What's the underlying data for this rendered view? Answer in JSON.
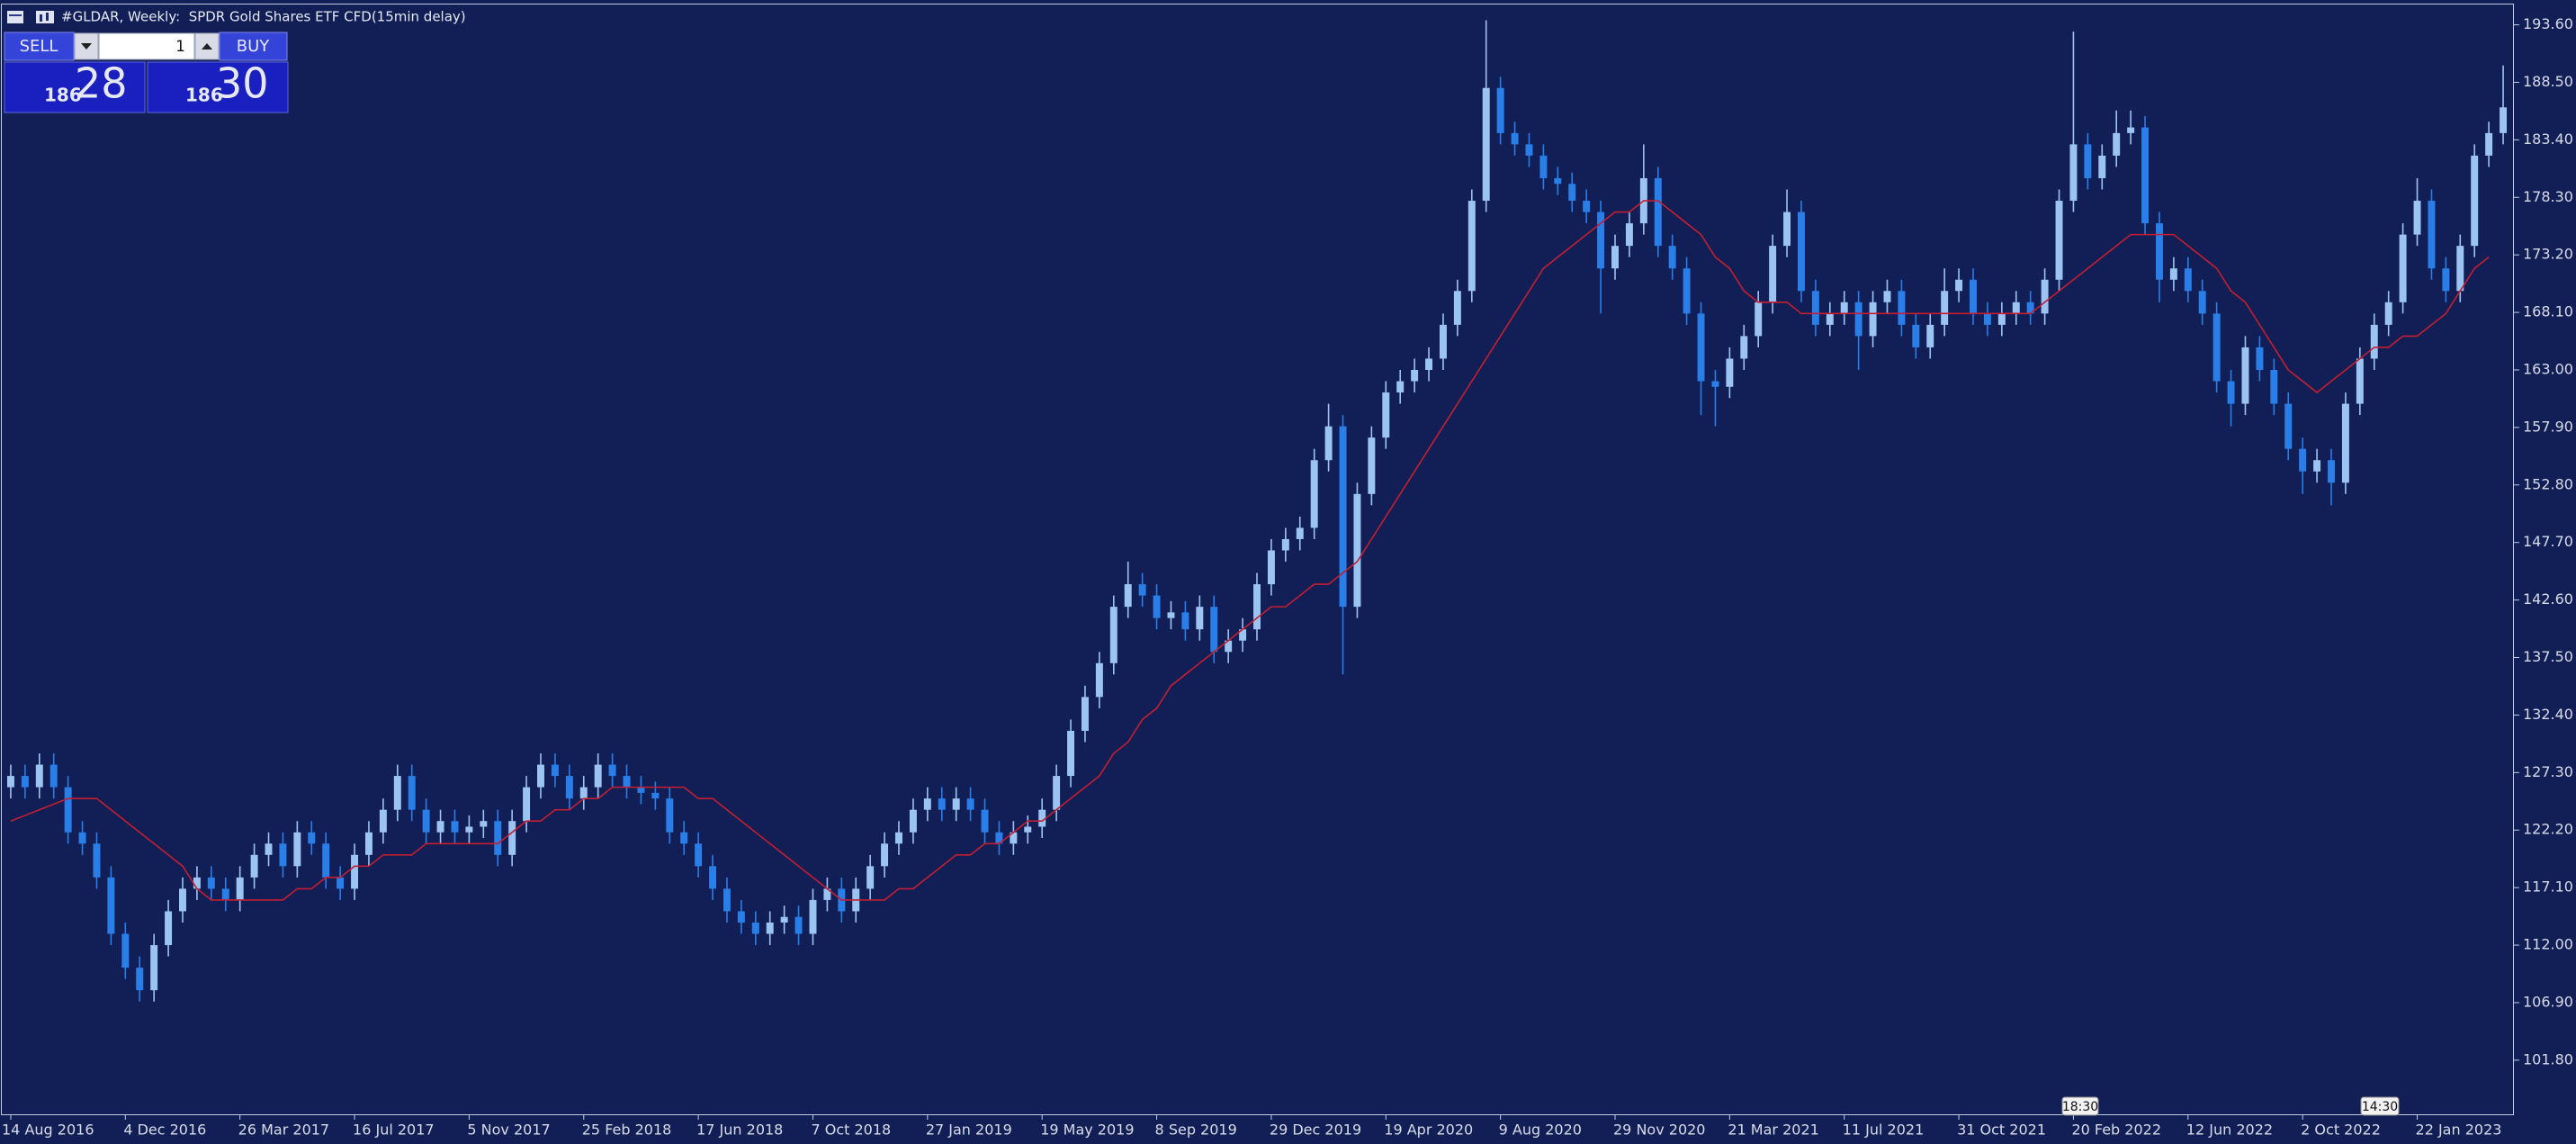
{
  "chart_data": {
    "type": "candlestick",
    "title": "#GLDAR, Weekly:  SPDR Gold Shares ETF CFD(15min delay)",
    "categories": [
      "14 Aug 2016",
      null,
      null,
      null,
      null,
      null,
      null,
      null,
      "4 Dec 2016",
      null,
      null,
      null,
      null,
      null,
      null,
      null,
      "26 Mar 2017",
      null,
      null,
      null,
      null,
      null,
      null,
      null,
      "16 Jul 2017",
      null,
      null,
      null,
      null,
      null,
      null,
      null,
      "5 Nov 2017",
      null,
      null,
      null,
      null,
      null,
      null,
      null,
      "25 Feb 2018",
      null,
      null,
      null,
      null,
      null,
      null,
      null,
      "17 Jun 2018",
      null,
      null,
      null,
      null,
      null,
      null,
      null,
      "7 Oct 2018",
      null,
      null,
      null,
      null,
      null,
      null,
      null,
      "27 Jan 2019",
      null,
      null,
      null,
      null,
      null,
      null,
      null,
      "19 May 2019",
      null,
      null,
      null,
      null,
      null,
      null,
      null,
      "8 Sep 2019",
      null,
      null,
      null,
      null,
      null,
      null,
      null,
      "29 Dec 2019",
      null,
      null,
      null,
      null,
      null,
      null,
      null,
      "19 Apr 2020",
      null,
      null,
      null,
      null,
      null,
      null,
      null,
      "9 Aug 2020",
      null,
      null,
      null,
      null,
      null,
      null,
      null,
      "29 Nov 2020",
      null,
      null,
      null,
      null,
      null,
      null,
      null,
      "21 Mar 2021",
      null,
      null,
      null,
      null,
      null,
      null,
      null,
      "11 Jul 2021",
      null,
      null,
      null,
      null,
      null,
      null,
      null,
      "31 Oct 2021",
      null,
      null,
      null,
      null,
      null,
      null,
      null,
      "20 Feb 2022",
      null,
      null,
      null,
      null,
      null,
      null,
      null,
      "12 Jun 2022",
      null,
      null,
      null,
      null,
      null,
      null,
      null,
      "2 Oct 2022",
      null,
      null,
      null,
      null,
      null,
      null,
      null,
      "22 Jan 2023",
      null,
      null,
      null,
      null,
      null,
      null
    ],
    "open": [
      126,
      127,
      126,
      128,
      126,
      122,
      121,
      118,
      113,
      110,
      108,
      112,
      115,
      117,
      118,
      117,
      116,
      118,
      120,
      121,
      119,
      122,
      121,
      118,
      117,
      120,
      122,
      124,
      127,
      124,
      122,
      123,
      122,
      122.5,
      123,
      120,
      123,
      126,
      128,
      127,
      125,
      126,
      128,
      127,
      126,
      125.5,
      125,
      122,
      121,
      119,
      117,
      115,
      114,
      113,
      114,
      114.5,
      113,
      116,
      117,
      115,
      117,
      119,
      121,
      122,
      124,
      125,
      124,
      125,
      124,
      122,
      121,
      122,
      122.5,
      124,
      127,
      131,
      134,
      137,
      142,
      144,
      143,
      141,
      141.5,
      140,
      142,
      138,
      139,
      140,
      144,
      147,
      148,
      149,
      155,
      158,
      142,
      152,
      157,
      161,
      162,
      163,
      164,
      167,
      170,
      178,
      188,
      184,
      183,
      182,
      180,
      179.5,
      178,
      177,
      172,
      174,
      176,
      180,
      174,
      172,
      168,
      162,
      161.5,
      164,
      166,
      169,
      174,
      177,
      170,
      167,
      168,
      169,
      166,
      169,
      170,
      167,
      165,
      167,
      170,
      171,
      168,
      167,
      168,
      169,
      168,
      171,
      178,
      183,
      180,
      182,
      184,
      184.5,
      176,
      171,
      172,
      170,
      168,
      162,
      160,
      165,
      163,
      160,
      156,
      154,
      155,
      153,
      160,
      164,
      167,
      169,
      175,
      178,
      172,
      170,
      174,
      182,
      184
    ],
    "high": [
      128,
      128,
      129,
      129,
      127,
      123,
      122,
      119,
      114,
      111,
      113,
      116,
      118,
      119,
      119,
      118,
      119,
      121,
      122,
      122,
      123,
      123,
      122,
      119,
      121,
      123,
      125,
      128,
      128,
      125,
      124,
      124,
      123.5,
      124,
      124,
      124,
      127,
      129,
      129,
      128,
      127,
      129,
      129,
      128,
      127,
      126.5,
      126,
      123,
      122,
      120,
      118,
      116,
      115,
      115,
      115.5,
      115.5,
      117,
      118,
      118,
      118,
      120,
      122,
      123,
      125,
      126,
      126,
      126,
      126,
      125,
      123,
      123,
      123.5,
      125,
      128,
      132,
      135,
      138,
      143,
      146,
      145,
      144,
      142.5,
      142.5,
      143,
      143,
      140,
      141,
      145,
      148,
      149,
      150,
      156,
      160,
      159,
      153,
      158,
      162,
      163,
      164,
      165,
      168,
      171,
      179,
      194,
      189,
      185,
      184,
      183,
      181,
      180.5,
      179,
      178,
      175,
      177,
      183,
      181,
      175,
      173,
      169,
      163,
      165,
      167,
      170,
      175,
      179,
      178,
      171,
      169,
      170,
      170,
      170,
      171,
      171,
      168,
      168,
      172,
      172,
      172,
      169,
      169,
      170,
      170,
      172,
      179,
      193,
      184,
      183,
      186,
      186,
      185.5,
      177,
      173,
      173,
      171,
      169,
      163,
      166,
      166,
      164,
      161,
      157,
      156,
      156,
      161,
      165,
      168,
      170,
      176,
      180,
      179,
      173,
      175,
      183,
      185,
      190
    ],
    "low": [
      125,
      125,
      125,
      125,
      121,
      120,
      117,
      112,
      109,
      107,
      107,
      111,
      114,
      116,
      116,
      115,
      115,
      117,
      119,
      118,
      118,
      120,
      117,
      116,
      116,
      119,
      121,
      123,
      123,
      121,
      121,
      121,
      121,
      121.5,
      119,
      119,
      122,
      125,
      126,
      124,
      124,
      125,
      126,
      125,
      124.5,
      124,
      121,
      120,
      118,
      116,
      114,
      113,
      112,
      112,
      113,
      112,
      112,
      115,
      114,
      114,
      116,
      118,
      120,
      121,
      123,
      123,
      123,
      123,
      121,
      120,
      120,
      121,
      121.5,
      123,
      126,
      130,
      133,
      136,
      141,
      142,
      140,
      140,
      139,
      139,
      137,
      137,
      138,
      139,
      143,
      146,
      147,
      148,
      154,
      136,
      141,
      151,
      156,
      160,
      161,
      162,
      163,
      166,
      169,
      177,
      183,
      182,
      181,
      179,
      178.5,
      177,
      176,
      168,
      171,
      173,
      175,
      173,
      171,
      167,
      159,
      158,
      160.5,
      163,
      165,
      168,
      173,
      169,
      166,
      166,
      167,
      163,
      165,
      168,
      166,
      164,
      164,
      166,
      169,
      167,
      166,
      166,
      167,
      167,
      167,
      170,
      177,
      179,
      179,
      181,
      183,
      175,
      169,
      170,
      169,
      167,
      161,
      158,
      159,
      162,
      159,
      155,
      152,
      153,
      151,
      152,
      159,
      163,
      166,
      168,
      174,
      171,
      169,
      169,
      173,
      181,
      183
    ],
    "close": [
      127,
      126,
      128,
      126,
      122,
      121,
      118,
      113,
      110,
      108,
      112,
      115,
      117,
      118,
      117,
      116,
      118,
      120,
      121,
      119,
      122,
      121,
      118,
      117,
      120,
      122,
      124,
      127,
      124,
      122,
      123,
      122,
      122.5,
      123,
      120,
      123,
      126,
      128,
      127,
      125,
      126,
      128,
      127,
      126,
      125.5,
      125,
      122,
      121,
      119,
      117,
      115,
      114,
      113,
      114,
      114.5,
      113,
      116,
      117,
      115,
      117,
      119,
      121,
      122,
      124,
      125,
      124,
      125,
      124,
      122,
      121,
      122,
      122.5,
      124,
      127,
      131,
      134,
      137,
      142,
      144,
      143,
      141,
      141.5,
      140,
      142,
      138,
      139,
      140,
      144,
      147,
      148,
      149,
      155,
      158,
      142,
      152,
      157,
      161,
      162,
      163,
      164,
      167,
      170,
      178,
      188,
      184,
      183,
      182,
      180,
      179.5,
      178,
      177,
      172,
      174,
      176,
      180,
      174,
      172,
      168,
      162,
      161.5,
      164,
      166,
      169,
      174,
      177,
      170,
      167,
      168,
      169,
      166,
      169,
      170,
      167,
      165,
      167,
      170,
      171,
      168,
      167,
      168,
      169,
      168,
      171,
      178,
      183,
      180,
      182,
      184,
      184.5,
      176,
      171,
      172,
      170,
      168,
      162,
      160,
      165,
      163,
      160,
      156,
      154,
      155,
      153,
      160,
      164,
      167,
      169,
      175,
      178,
      172,
      170,
      174,
      182,
      184,
      186.28
    ],
    "up_color": "#9cc4f2",
    "down_color": "#2a7ee8",
    "overlay": {
      "type": "line",
      "color": "#c41e30",
      "values": [
        123,
        123.5,
        124,
        124.5,
        125,
        125,
        125,
        124,
        123,
        122,
        121,
        120,
        119,
        117,
        116,
        116,
        116,
        116,
        116,
        116,
        117,
        117,
        118,
        118,
        119,
        119,
        120,
        120,
        120,
        121,
        121,
        121,
        121,
        121,
        121,
        122,
        123,
        123,
        124,
        124,
        125,
        125,
        126,
        126,
        126,
        126,
        126,
        126,
        125,
        125,
        124,
        123,
        122,
        121,
        120,
        119,
        118,
        117,
        116,
        116,
        116,
        116,
        117,
        117,
        118,
        119,
        120,
        120,
        121,
        121,
        122,
        123,
        123,
        124,
        125,
        126,
        127,
        129,
        130,
        132,
        133,
        135,
        136,
        137,
        138,
        139,
        140,
        141,
        142,
        142,
        143,
        144,
        144,
        145,
        146,
        148,
        150,
        152,
        154,
        156,
        158,
        160,
        162,
        164,
        166,
        168,
        170,
        172,
        173,
        174,
        175,
        176,
        177,
        177,
        178,
        178,
        177,
        176,
        175,
        173,
        172,
        170,
        169,
        169,
        169,
        168,
        168,
        168,
        168,
        168,
        168,
        168,
        168,
        168,
        168,
        168,
        168,
        168,
        168,
        168,
        168,
        168,
        169,
        170,
        171,
        172,
        173,
        174,
        175,
        175,
        175,
        175,
        174,
        173,
        172,
        170,
        169,
        167,
        165,
        163,
        162,
        161,
        162,
        163,
        164,
        165,
        165,
        166,
        166,
        167,
        168,
        170,
        172,
        173
      ]
    },
    "ylim": [
      97.0,
      195.4
    ],
    "yticks": [
      {
        "value": 193.6,
        "label": "193.60"
      },
      {
        "value": 188.5,
        "label": "188.50"
      },
      {
        "value": 183.4,
        "label": "183.40"
      },
      {
        "value": 178.3,
        "label": "178.30"
      },
      {
        "value": 173.2,
        "label": "173.20"
      },
      {
        "value": 168.1,
        "label": "168.10"
      },
      {
        "value": 163,
        "label": "163.00"
      },
      {
        "value": 157.9,
        "label": "157.90"
      },
      {
        "value": 152.8,
        "label": "152.80"
      },
      {
        "value": 147.7,
        "label": "147.70"
      },
      {
        "value": 142.6,
        "label": "142.60"
      },
      {
        "value": 137.5,
        "label": "137.50"
      },
      {
        "value": 132.4,
        "label": "132.40"
      },
      {
        "value": 127.3,
        "label": "127.30"
      },
      {
        "value": 122.2,
        "label": "122.20"
      },
      {
        "value": 117.1,
        "label": "117.10"
      },
      {
        "value": 112,
        "label": "112.00"
      },
      {
        "value": 106.9,
        "label": "106.90"
      },
      {
        "value": 101.8,
        "label": "101.80"
      }
    ],
    "grid": false,
    "annotations": [
      "18:30",
      "14:30"
    ]
  },
  "trade_panel": {
    "sell": "SELL",
    "buy": "BUY",
    "lots": "1",
    "bid": [
      "186",
      "28"
    ],
    "ask": [
      "186",
      "30"
    ]
  }
}
